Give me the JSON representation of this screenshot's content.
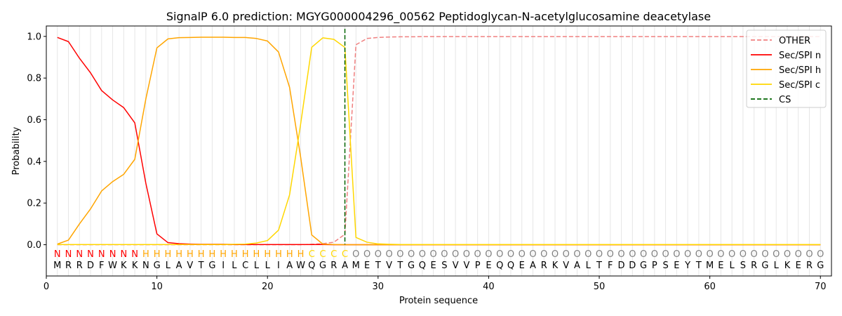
{
  "chart_data": {
    "type": "line",
    "title": "SignalP 6.0 prediction: MGYG000004296_00562 Peptidoglycan-N-acetylglucosamine deacetylase",
    "xlabel": "Protein sequence",
    "ylabel": "Probability",
    "xlim": [
      0,
      71
    ],
    "ylim": [
      -0.15,
      1.05
    ],
    "x_ticks": [
      0,
      10,
      20,
      30,
      40,
      50,
      60,
      70
    ],
    "y_ticks": [
      0.0,
      0.2,
      0.4,
      0.6,
      0.8,
      1.0
    ],
    "x_tick_labels": [
      "0",
      "10",
      "20",
      "30",
      "40",
      "50",
      "60",
      "70"
    ],
    "y_tick_labels": [
      "0.0",
      "0.2",
      "0.4",
      "0.6",
      "0.8",
      "1.0"
    ],
    "grid": "vertical lines at each residue",
    "legend_position": "top-right",
    "sequence": [
      "M",
      "R",
      "R",
      "D",
      "F",
      "W",
      "K",
      "K",
      "N",
      "G",
      "L",
      "A",
      "V",
      "T",
      "G",
      "I",
      "L",
      "C",
      "L",
      "L",
      "I",
      "A",
      "W",
      "Q",
      "G",
      "R",
      "A",
      "M",
      "E",
      "T",
      "V",
      "T",
      "G",
      "Q",
      "E",
      "S",
      "V",
      "V",
      "P",
      "E",
      "Q",
      "Q",
      "E",
      "A",
      "R",
      "K",
      "V",
      "A",
      "L",
      "T",
      "F",
      "D",
      "D",
      "G",
      "P",
      "S",
      "E",
      "Y",
      "T",
      "M",
      "E",
      "L",
      "S",
      "R",
      "G",
      "L",
      "K",
      "E",
      "R",
      "G"
    ],
    "labels": [
      "N",
      "N",
      "N",
      "N",
      "N",
      "N",
      "N",
      "N",
      "H",
      "H",
      "H",
      "H",
      "H",
      "H",
      "H",
      "H",
      "H",
      "H",
      "H",
      "H",
      "H",
      "H",
      "H",
      "C",
      "C",
      "C",
      "C",
      "O",
      "O",
      "O",
      "O",
      "O",
      "O",
      "O",
      "O",
      "O",
      "O",
      "O",
      "O",
      "O",
      "O",
      "O",
      "O",
      "O",
      "O",
      "O",
      "O",
      "O",
      "O",
      "O",
      "O",
      "O",
      "O",
      "O",
      "O",
      "O",
      "O",
      "O",
      "O",
      "O",
      "O",
      "O",
      "O",
      "O",
      "O",
      "O",
      "O",
      "O",
      "O",
      "O"
    ],
    "label_colors": {
      "N": "#ff0000",
      "H": "#ffa500",
      "C": "#ffd700",
      "O": "#808080"
    },
    "cs_position": 27,
    "series": [
      {
        "name": "OTHER",
        "color": "#f08080",
        "dash": true,
        "values": [
          0.0,
          0.0,
          0.0,
          0.0,
          0.0,
          0.0,
          0.0,
          0.0,
          0.0,
          0.0,
          0.0,
          0.0,
          0.0,
          0.0,
          0.0,
          0.0,
          0.0,
          0.0,
          0.0,
          0.0,
          0.0,
          0.0,
          0.0,
          0.002,
          0.005,
          0.012,
          0.05,
          0.96,
          0.99,
          0.995,
          0.997,
          0.998,
          0.998,
          0.999,
          0.999,
          0.999,
          0.999,
          0.999,
          0.999,
          0.999,
          0.999,
          0.999,
          0.999,
          0.999,
          0.999,
          0.999,
          0.999,
          0.999,
          0.999,
          0.999,
          0.999,
          0.999,
          0.999,
          0.999,
          0.999,
          0.999,
          0.999,
          0.999,
          0.999,
          0.999,
          0.999,
          0.999,
          0.999,
          0.999,
          0.999,
          0.999,
          0.999,
          0.999,
          0.999,
          0.999
        ]
      },
      {
        "name": "Sec/SPI n",
        "color": "#ff0000",
        "dash": false,
        "values": [
          0.995,
          0.975,
          0.895,
          0.825,
          0.74,
          0.695,
          0.658,
          0.585,
          0.295,
          0.052,
          0.01,
          0.005,
          0.003,
          0.002,
          0.002,
          0.002,
          0.001,
          0.001,
          0.001,
          0.001,
          0.001,
          0.001,
          0.001,
          0.001,
          0.001,
          0.0,
          0.0,
          0.0,
          0.0,
          0.0,
          0.0,
          0.0,
          0.0,
          0.0,
          0.0,
          0.0,
          0.0,
          0.0,
          0.0,
          0.0,
          0.0,
          0.0,
          0.0,
          0.0,
          0.0,
          0.0,
          0.0,
          0.0,
          0.0,
          0.0,
          0.0,
          0.0,
          0.0,
          0.0,
          0.0,
          0.0,
          0.0,
          0.0,
          0.0,
          0.0,
          0.0,
          0.0,
          0.0,
          0.0,
          0.0,
          0.0,
          0.0,
          0.0,
          0.0,
          0.0
        ]
      },
      {
        "name": "Sec/SPI h",
        "color": "#ffa500",
        "dash": false,
        "values": [
          0.003,
          0.022,
          0.1,
          0.172,
          0.258,
          0.303,
          0.338,
          0.41,
          0.7,
          0.945,
          0.988,
          0.994,
          0.995,
          0.996,
          0.996,
          0.996,
          0.995,
          0.995,
          0.99,
          0.978,
          0.925,
          0.755,
          0.42,
          0.047,
          0.003,
          0.001,
          0.0,
          0.0,
          0.0,
          0.0,
          0.0,
          0.0,
          0.0,
          0.0,
          0.0,
          0.0,
          0.0,
          0.0,
          0.0,
          0.0,
          0.0,
          0.0,
          0.0,
          0.0,
          0.0,
          0.0,
          0.0,
          0.0,
          0.0,
          0.0,
          0.0,
          0.0,
          0.0,
          0.0,
          0.0,
          0.0,
          0.0,
          0.0,
          0.0,
          0.0,
          0.0,
          0.0,
          0.0,
          0.0,
          0.0,
          0.0,
          0.0,
          0.0,
          0.0,
          0.0
        ]
      },
      {
        "name": "Sec/SPI c",
        "color": "#ffd700",
        "dash": false,
        "values": [
          0.001,
          0.001,
          0.001,
          0.001,
          0.001,
          0.001,
          0.001,
          0.001,
          0.001,
          0.001,
          0.001,
          0.001,
          0.001,
          0.001,
          0.001,
          0.001,
          0.002,
          0.003,
          0.008,
          0.02,
          0.07,
          0.24,
          0.58,
          0.948,
          0.993,
          0.986,
          0.947,
          0.035,
          0.012,
          0.004,
          0.002,
          0.001,
          0.001,
          0.001,
          0.001,
          0.001,
          0.001,
          0.001,
          0.001,
          0.001,
          0.001,
          0.001,
          0.001,
          0.001,
          0.001,
          0.001,
          0.001,
          0.001,
          0.001,
          0.001,
          0.001,
          0.001,
          0.001,
          0.001,
          0.001,
          0.001,
          0.001,
          0.001,
          0.001,
          0.001,
          0.001,
          0.001,
          0.001,
          0.001,
          0.001,
          0.001,
          0.001,
          0.001,
          0.001,
          0.001
        ]
      },
      {
        "name": "CS",
        "color": "#006400",
        "dash": true,
        "vertical_at": 27
      }
    ]
  }
}
